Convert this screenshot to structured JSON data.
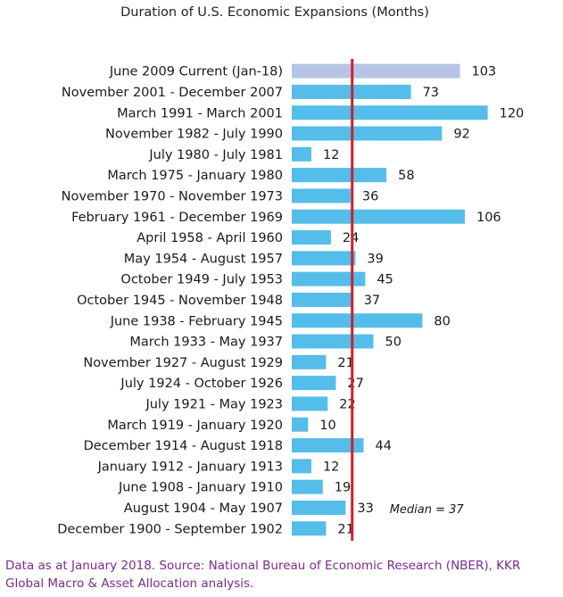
{
  "chart_data": {
    "type": "bar",
    "orientation": "horizontal",
    "title": "Duration of U.S. Economic Expansions (Months)",
    "categories": [
      "June 2009 Current (Jan-18)",
      "November 2001 - December 2007",
      "March 1991 - March 2001",
      "November 1982 - July 1990",
      "July 1980 - July 1981",
      "March 1975 - January 1980",
      "November 1970 - November 1973",
      "February 1961 - December 1969",
      "April 1958 - April 1960",
      "May 1954 - August 1957",
      "October 1949 - July 1953",
      "October 1945 - November 1948",
      "June 1938 - February 1945",
      "March 1933 - May 1937",
      "November 1927 - August 1929",
      "July 1924 - October 1926",
      "July 1921 - May 1923",
      "March 1919 - January 1920",
      "December 1914 - August 1918",
      "January 1912 - January 1913",
      "June 1908 - January 1910",
      "August 1904 - May 1907",
      "December 1900 - September 1902"
    ],
    "values": [
      103,
      73,
      120,
      92,
      12,
      58,
      36,
      106,
      24,
      39,
      45,
      37,
      80,
      50,
      21,
      27,
      22,
      10,
      44,
      12,
      19,
      33,
      21
    ],
    "xlim": [
      0,
      130
    ],
    "median": 37,
    "median_label": "Median = 37",
    "colors": {
      "bar": "#55bde9",
      "highlight_bar": "#b6c4e6",
      "median_line": "#d01f2a",
      "source_text": "#7a2c8c"
    },
    "highlight_index": 0,
    "grid": false,
    "legend": "none"
  },
  "source_note": "Data as at January 2018. Source: National Bureau of Economic Research (NBER), KKR Global Macro & Asset Allocation analysis."
}
